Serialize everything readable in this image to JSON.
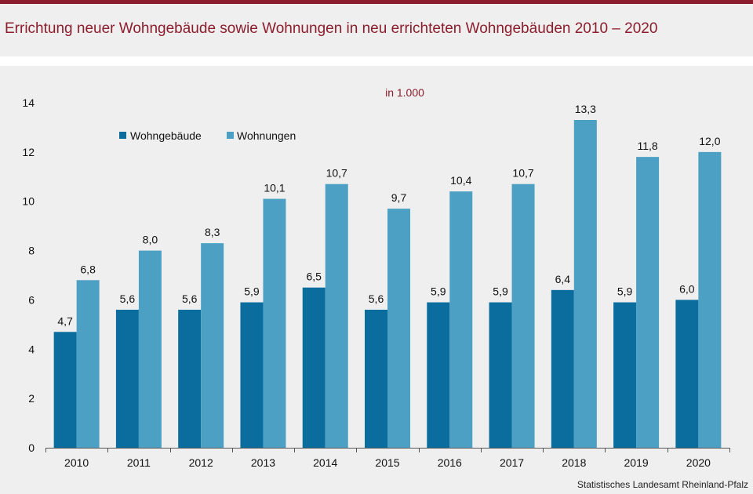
{
  "title": "Errichtung neuer Wohngebäude sowie Wohnungen in neu errichteten Wohngebäuden 2010 – 2020",
  "source": "Statistisches Landesamt  Rheinland-Pfalz",
  "colors": {
    "accent": "#8c1d2c",
    "series_dark": "#0a6d9e",
    "series_light": "#4ba0c4",
    "background": "#efefef"
  },
  "chart_data": {
    "type": "bar",
    "unit_label": "in 1.000",
    "categories": [
      "2010",
      "2011",
      "2012",
      "2013",
      "2014",
      "2015",
      "2016",
      "2017",
      "2018",
      "2019",
      "2020"
    ],
    "series": [
      {
        "name": "Wohngebäude",
        "color": "#0a6d9e",
        "values": [
          4.7,
          5.6,
          5.6,
          5.9,
          6.5,
          5.6,
          5.9,
          5.9,
          6.4,
          5.9,
          6.0
        ],
        "labels": [
          "4,7",
          "5,6",
          "5,6",
          "5,9",
          "6,5",
          "5,6",
          "5,9",
          "5,9",
          "6,4",
          "5,9",
          "6,0"
        ]
      },
      {
        "name": "Wohnungen",
        "color": "#4ba0c4",
        "values": [
          6.8,
          8.0,
          8.3,
          10.1,
          10.7,
          9.7,
          10.4,
          10.7,
          13.3,
          11.8,
          12.0
        ],
        "labels": [
          "6,8",
          "8,0",
          "8,3",
          "10,1",
          "10,7",
          "9,7",
          "10,4",
          "10,7",
          "13,3",
          "11,8",
          "12,0"
        ]
      }
    ],
    "yticks": [
      0,
      2,
      4,
      6,
      8,
      10,
      12,
      14
    ],
    "ylim": [
      0,
      14
    ],
    "xlabel": "",
    "ylabel": "",
    "grid": false,
    "legend_position": "top-left"
  }
}
